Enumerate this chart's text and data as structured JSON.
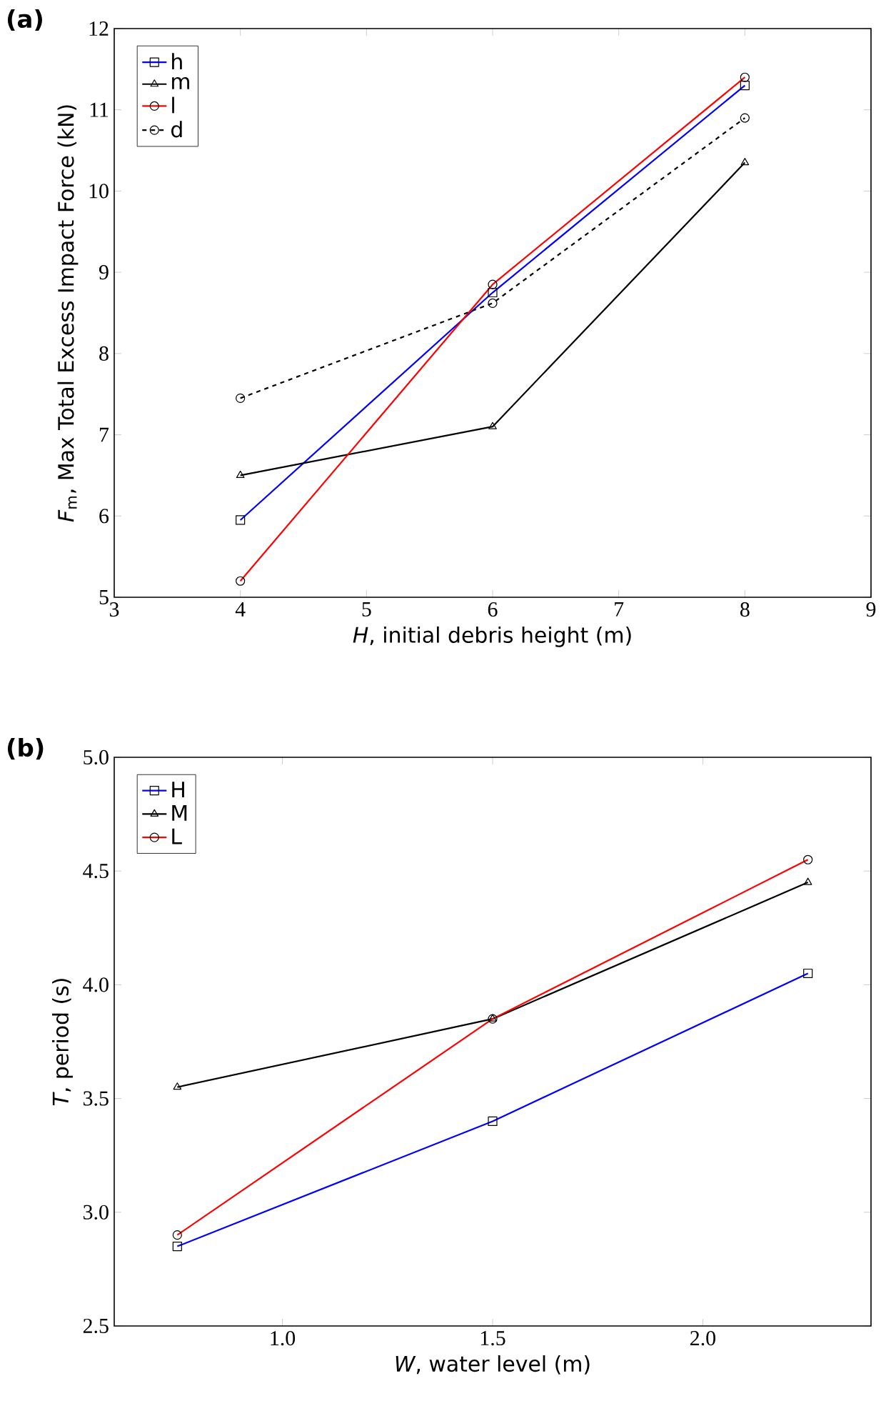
{
  "chart_data": [
    {
      "type": "line",
      "title": "(a)",
      "xlabel": "*H*, initial debris height (m)",
      "ylabel": "*F*$_{m}$, Max Total Excess Impact Force (kN)",
      "x": [
        4,
        6,
        8
      ],
      "xlim": [
        3,
        9
      ],
      "ylim": [
        5,
        12
      ],
      "xticks": [
        3,
        4,
        5,
        6,
        7,
        8,
        9
      ],
      "yticks": [
        5,
        6,
        7,
        8,
        9,
        10,
        11,
        12
      ],
      "legend": "top left",
      "grid": false,
      "series": [
        {
          "name": "h",
          "color": "#0000ff",
          "marker": "square",
          "line_style": "solid",
          "values": [
            5.95,
            8.75,
            11.3
          ]
        },
        {
          "name": "m",
          "color": "#000000",
          "marker": "triangle",
          "line_style": "solid",
          "values": [
            6.5,
            7.1,
            10.35
          ]
        },
        {
          "name": "l",
          "color": "#ff0000",
          "marker": "circle",
          "line_style": "solid",
          "values": [
            5.2,
            8.85,
            11.4
          ]
        },
        {
          "name": "d",
          "color": "#000000",
          "marker": "circle",
          "line_style": "dashed",
          "values": [
            7.45,
            8.62,
            10.9
          ]
        }
      ]
    },
    {
      "type": "line",
      "title": "(b)",
      "xlabel": "*W*, water level (m)",
      "ylabel": "*T*, period (s)",
      "x": [
        0.75,
        1.5,
        2.25
      ],
      "xlim": [
        0.6,
        2.4
      ],
      "ylim": [
        2.5,
        5.0
      ],
      "xticks": [
        {
          "value": 1.0,
          "label": "1.0"
        },
        {
          "value": 1.5,
          "label": "1.5"
        },
        {
          "value": 2.0,
          "label": "2.0"
        }
      ],
      "yticks": [
        {
          "value": 2.5,
          "label": "2.5"
        },
        {
          "value": 3.0,
          "label": "3.0"
        },
        {
          "value": 3.5,
          "label": "3.5"
        },
        {
          "value": 4.0,
          "label": "4.0"
        },
        {
          "value": 4.5,
          "label": "4.5"
        },
        {
          "value": 5.0,
          "label": "5.0"
        }
      ],
      "legend": "top left",
      "grid": false,
      "series": [
        {
          "name": "H",
          "color": "#0000ff",
          "marker": "square",
          "line_style": "solid",
          "values": [
            2.85,
            3.4,
            4.05
          ]
        },
        {
          "name": "M",
          "color": "#000000",
          "marker": "triangle",
          "line_style": "solid",
          "values": [
            3.55,
            3.85,
            4.45
          ]
        },
        {
          "name": "L",
          "color": "#ff0000",
          "marker": "circle",
          "line_style": "solid",
          "values": [
            2.9,
            3.85,
            4.55
          ]
        }
      ]
    }
  ]
}
